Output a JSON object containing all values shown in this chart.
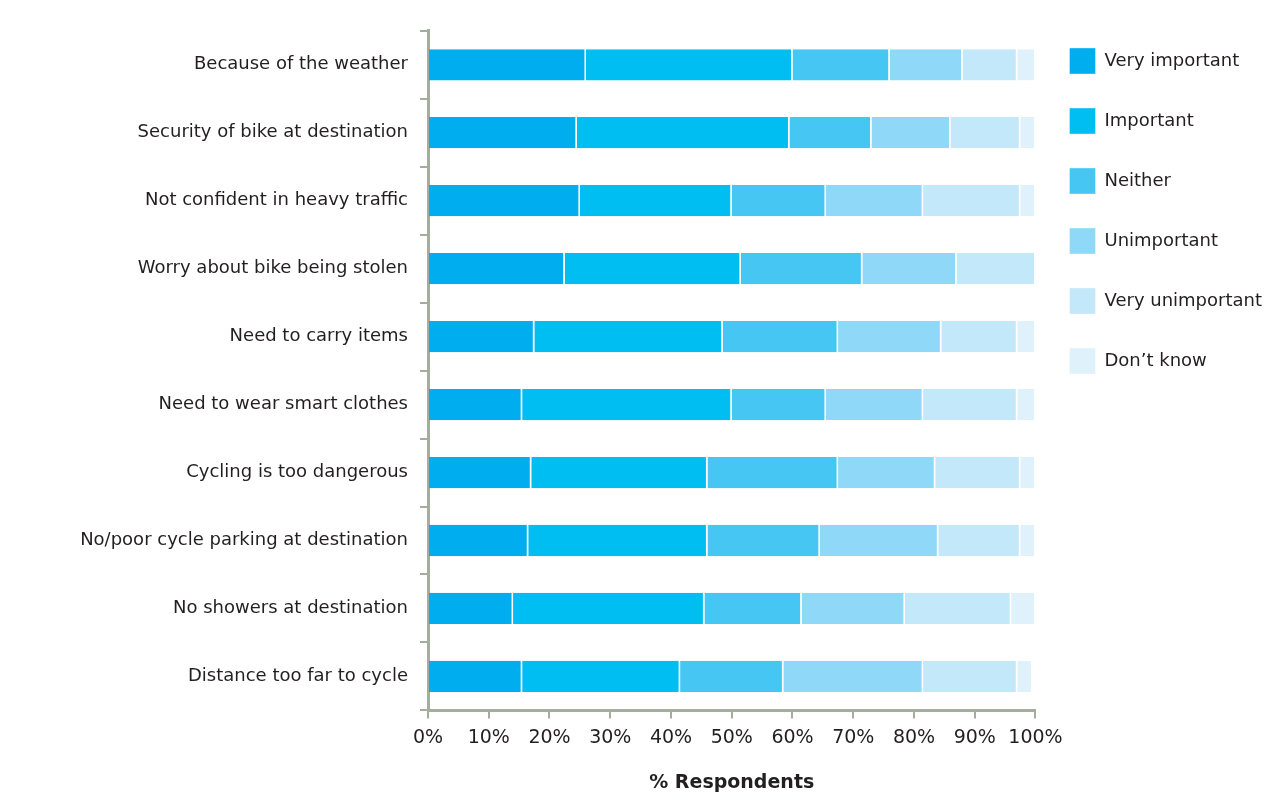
{
  "chart_data": {
    "type": "bar",
    "orientation": "horizontal",
    "stacked": true,
    "xlabel": "% Respondents",
    "categories": [
      "Because of the weather",
      "Security of bike at destination",
      "Not confident in heavy traffic",
      "Worry about bike being stolen",
      "Need to carry items",
      "Need to wear smart clothes",
      "Cycling is too dangerous",
      "No/poor cycle parking at destination",
      "No showers at destination",
      "Distance too far to cycle"
    ],
    "series": [
      {
        "name": "Very important",
        "color": "#00aeef",
        "values": [
          26,
          24.5,
          25,
          22.5,
          17.5,
          15.5,
          17,
          16.5,
          14,
          15.5
        ]
      },
      {
        "name": "Important",
        "color": "#00bef2",
        "values": [
          34,
          35,
          25,
          29,
          31,
          34.5,
          29,
          29.5,
          31.5,
          26
        ]
      },
      {
        "name": "Neither",
        "color": "#45c6f3",
        "values": [
          16,
          13.5,
          15.5,
          20,
          19,
          15.5,
          21.5,
          18.5,
          16,
          17
        ]
      },
      {
        "name": "Unimportant",
        "color": "#8fd8f7",
        "values": [
          12,
          13,
          16,
          15.5,
          17,
          16,
          16,
          19.5,
          17,
          23
        ]
      },
      {
        "name": "Very unimportant",
        "color": "#c2e8f9",
        "values": [
          9,
          11.5,
          16,
          13,
          12.5,
          15.5,
          14,
          13.5,
          17.5,
          15.5
        ]
      },
      {
        "name": "Don’t know",
        "color": "#dff2fc",
        "values": [
          3,
          2.5,
          2.5,
          0,
          3,
          3,
          2.5,
          2.5,
          4,
          2.5
        ]
      }
    ],
    "xlim": [
      0,
      100
    ],
    "xticks": [
      {
        "value": 0,
        "label": "0%"
      },
      {
        "value": 10,
        "label": "10%"
      },
      {
        "value": 20,
        "label": "20%"
      },
      {
        "value": 30,
        "label": "30%"
      },
      {
        "value": 40,
        "label": "40%"
      },
      {
        "value": 50,
        "label": "50%"
      },
      {
        "value": 60,
        "label": "60%"
      },
      {
        "value": 70,
        "label": "70%"
      },
      {
        "value": 80,
        "label": "80%"
      },
      {
        "value": 90,
        "label": "90%"
      },
      {
        "value": 100,
        "label": "100%"
      }
    ],
    "grid": false,
    "legend": "top right"
  }
}
